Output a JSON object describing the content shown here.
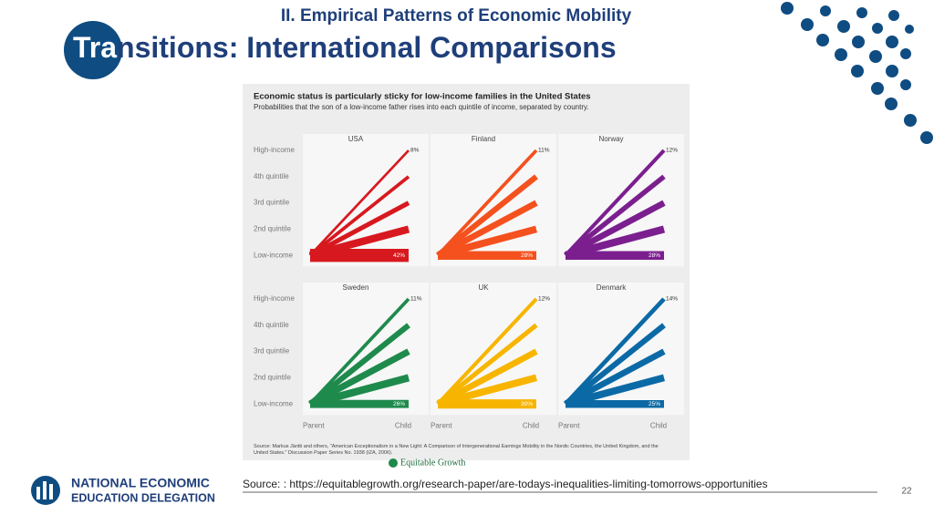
{
  "slide": {
    "header": "II. Empirical Patterns of Economic Mobility",
    "title_highlight": "Tra",
    "title_rest": "nsitions: International Comparisons",
    "logo_line1": "NATIONAL ECONOMIC",
    "logo_line2": "EDUCATION DELEGATION",
    "source": "Source:  : https://equitablegrowth.org/research-paper/are-todays-inequalities-limiting-tomorrows-opportunities",
    "page_number": "22"
  },
  "chart_data": {
    "type": "fan",
    "title": "Economic status is particularly sticky for low-income families in the United States",
    "subtitle": "Probabilities that the son of a low-income father rises into each quintile of income, separated by country.",
    "categories": [
      "High-income",
      "4th quintile",
      "3rd quintile",
      "2nd quintile",
      "Low-income"
    ],
    "x_labels": [
      "Parent",
      "Child"
    ],
    "series": [
      {
        "name": "USA",
        "color": "#d7191f",
        "values": [
          8,
          11,
          15,
          24,
          42
        ],
        "value_labels": [
          "8%",
          null,
          null,
          null,
          "42%"
        ]
      },
      {
        "name": "Finland",
        "color": "#f4511e",
        "values": [
          11,
          18,
          20,
          23,
          28
        ],
        "value_labels": [
          "11%",
          null,
          null,
          null,
          "28%"
        ]
      },
      {
        "name": "Norway",
        "color": "#7b1f8f",
        "values": [
          12,
          16,
          20,
          24,
          28
        ],
        "value_labels": [
          "12%",
          null,
          null,
          null,
          "28%"
        ]
      },
      {
        "name": "Sweden",
        "color": "#1e8a4c",
        "values": [
          11,
          18,
          21,
          24,
          26
        ],
        "value_labels": [
          "11%",
          null,
          null,
          null,
          "26%"
        ]
      },
      {
        "name": "UK",
        "color": "#f7b500",
        "values": [
          12,
          15,
          20,
          23,
          30
        ],
        "value_labels": [
          "12%",
          null,
          null,
          null,
          "30%"
        ]
      },
      {
        "name": "Denmark",
        "color": "#0b6aa6",
        "values": [
          14,
          18,
          20,
          23,
          25
        ],
        "value_labels": [
          "14%",
          null,
          null,
          null,
          "25%"
        ]
      }
    ],
    "source": "Source: Markus Jäntti and others, \"American Exceptionalism in a New Light: A Comparison of Intergenerational Earnings Mobility in the Nordic Countries, the United Kingdom, and the United States.\" Discussion Paper Series No. 1938 (IZA, 2006).",
    "brand": "Equitable Growth"
  }
}
